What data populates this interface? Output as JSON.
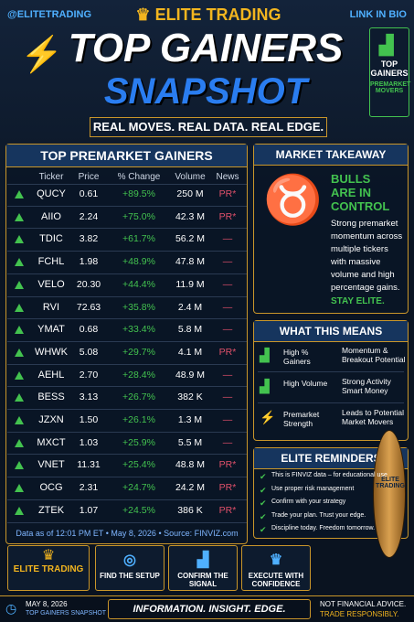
{
  "header": {
    "handle": "@ELITETRADING",
    "brand": "ELITE TRADING",
    "link": "LINK IN BIO",
    "title_line1": "TOP GAINERS",
    "title_line2": "SNAPSHOT",
    "tagline": "REAL MOVES. REAL DATA. REAL EDGE.",
    "badge_title": "TOP GAINERS",
    "badge_subtitle": "PREMARKET MOVERS"
  },
  "table": {
    "title": "TOP PREMARKET GAINERS",
    "columns": [
      "Ticker",
      "Price",
      "% Change",
      "Volume",
      "News"
    ],
    "rows": [
      [
        "QUCY",
        "0.61",
        "+89.5%",
        "250 M",
        "PR*"
      ],
      [
        "AIIO",
        "2.24",
        "+75.0%",
        "42.3 M",
        "PR*"
      ],
      [
        "TDIC",
        "3.82",
        "+61.7%",
        "56.2 M",
        "—"
      ],
      [
        "FCHL",
        "1.98",
        "+48.9%",
        "47.8 M",
        "—"
      ],
      [
        "VELO",
        "20.30",
        "+44.4%",
        "11.9 M",
        "—"
      ],
      [
        "RVI",
        "72.63",
        "+35.8%",
        "2.4 M",
        "—"
      ],
      [
        "YMAT",
        "0.68",
        "+33.4%",
        "5.8 M",
        "—"
      ],
      [
        "WHWK",
        "5.08",
        "+29.7%",
        "4.1 M",
        "PR*"
      ],
      [
        "AEHL",
        "2.70",
        "+28.4%",
        "48.9 M",
        "—"
      ],
      [
        "BESS",
        "3.13",
        "+26.7%",
        "382 K",
        "—"
      ],
      [
        "JZXN",
        "1.50",
        "+26.1%",
        "1.3 M",
        "—"
      ],
      [
        "MXCT",
        "1.03",
        "+25.9%",
        "5.5 M",
        "—"
      ],
      [
        "VNET",
        "11.31",
        "+25.4%",
        "48.8 M",
        "PR*"
      ],
      [
        "OCG",
        "2.31",
        "+24.7%",
        "24.2 M",
        "PR*"
      ],
      [
        "ZTEK",
        "1.07",
        "+24.5%",
        "386 K",
        "PR*"
      ]
    ],
    "footnote": "Data as of 12:01 PM ET • May 8, 2026 • Source: FINVIZ.com"
  },
  "takeaway": {
    "title": "MARKET TAKEAWAY",
    "headline": "BULLS ARE IN CONTROL",
    "body": "Strong premarket momentum across multiple tickers with massive volume and high percentage gains.",
    "cta": "STAY ELITE."
  },
  "meaning": {
    "title": "WHAT THIS MEANS",
    "items": [
      {
        "label": "High % Gainers",
        "desc": "Momentum & Breakout Potential"
      },
      {
        "label": "High Volume",
        "desc": "Strong Activity Smart Money"
      },
      {
        "label": "Premarket Strength",
        "desc": "Leads to Potential Market Movers"
      }
    ]
  },
  "reminders": {
    "title": "ELITE REMINDERS",
    "items": [
      "This is FINVIZ data – for educational use",
      "Use proper risk management",
      "Confirm with your strategy",
      "Trade your plan. Trust your edge.",
      "Discipline today. Freedom tomorrow."
    ],
    "board": "ELITE TRADING"
  },
  "steps": {
    "logo": "ELITE TRADING",
    "items": [
      "FIND THE SETUP",
      "CONFIRM THE SIGNAL",
      "EXECUTE WITH CONFIDENCE"
    ]
  },
  "footer": {
    "date": "MAY 8, 2026",
    "subtitle": "TOP GAINERS SNAPSHOT",
    "slogan": "INFORMATION. INSIGHT. EDGE.",
    "disclaimer": "NOT FINANCIAL ADVICE.",
    "disclaimer2": "TRADE RESPONSIBLY."
  }
}
